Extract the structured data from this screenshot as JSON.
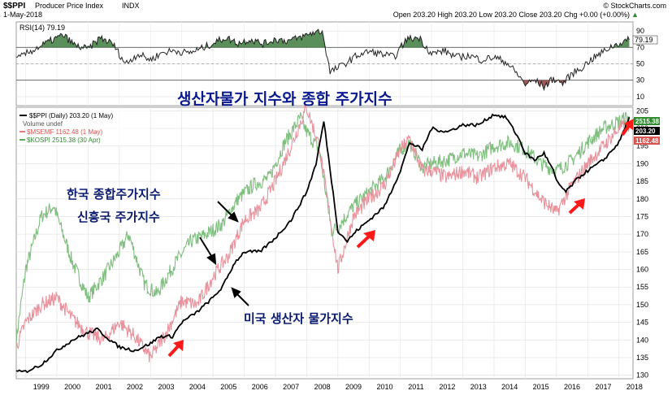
{
  "header": {
    "symbol": "$$PPI",
    "name": "Producer Price Index",
    "exchange": "INDX",
    "date": "1-May-2018",
    "watermark": "© StockCharts.com",
    "ohlc": "Open 203.20  High 203.20  Low 203.20  Close 203.20  Chg +0.00 (+0.00%)",
    "ohlc_arrow": "▲"
  },
  "rsi_panel": {
    "label": "RSI(14) 79.19",
    "value_tag": "79.19",
    "ticks": [
      "90",
      "70",
      "50",
      "30",
      "10"
    ]
  },
  "main_panel": {
    "title_ko": "생산자물가 지수와 종합 주가지수",
    "legend": [
      {
        "text": "$$PPI (Daily) 203.20 (1 May)",
        "color": "#000000"
      },
      {
        "text": "Volume undef",
        "color": "#555555"
      },
      {
        "text": "$MSEMF 1162.48 (1 May)",
        "color": "#d9534f"
      },
      {
        "text": "$KOSPI 2515.38 (30 Apr)",
        "color": "#2e8b2e"
      }
    ],
    "right_tags": [
      {
        "text": "2515.38",
        "color": "#2e8b2e"
      },
      {
        "text": "203.20",
        "color": "#000000"
      },
      {
        "text": "1162.48",
        "color": "#d9534f"
      }
    ],
    "annotations": {
      "kospi": "한국 종합주가지수",
      "msemf": "신흥국 주가지수",
      "ppi": "미국 생산자 물가지수"
    }
  },
  "colors": {
    "ppi": "#000000",
    "kospi": "#7fbf7f",
    "msemf": "#e8929c",
    "rsi_fill": "#3d7a3d",
    "rsi_low_fill": "#8b3a3a",
    "arrow": "#ff1a1a"
  },
  "chart_data": {
    "type": "line",
    "x_axis": {
      "labels": [
        "1999",
        "2000",
        "2001",
        "2002",
        "2003",
        "2004",
        "2005",
        "2006",
        "2007",
        "2008",
        "2009",
        "2010",
        "2011",
        "2012",
        "2013",
        "2014",
        "2015",
        "2016",
        "2017",
        "2018"
      ]
    },
    "y_axis": {
      "ticks": [
        "205",
        "200",
        "195",
        "190",
        "185",
        "180",
        "175",
        "170",
        "165",
        "160",
        "155",
        "150",
        "145",
        "140",
        "135",
        "130"
      ],
      "ylim": [
        129,
        206
      ]
    },
    "series": [
      {
        "name": "$$PPI (Daily) 203.20 (1 May)",
        "x": [
          1998.7,
          1999.0,
          1999.5,
          2000.0,
          2000.5,
          2001.0,
          2001.3,
          2001.7,
          2002.0,
          2002.5,
          2003.0,
          2003.3,
          2003.7,
          2004.0,
          2004.5,
          2005.0,
          2005.3,
          2005.7,
          2006.0,
          2006.5,
          2007.0,
          2007.5,
          2008.0,
          2008.3,
          2008.55,
          2008.8,
          2009.0,
          2009.3,
          2009.6,
          2010.0,
          2010.5,
          2011.0,
          2011.3,
          2011.7,
          2012.0,
          2012.5,
          2013.0,
          2013.5,
          2014.0,
          2014.4,
          2014.8,
          2015.0,
          2015.3,
          2015.6,
          2015.9,
          2016.0,
          2016.3,
          2016.7,
          2017.0,
          2017.5,
          2018.0,
          2018.33
        ],
        "y": [
          131,
          131,
          133,
          137,
          140,
          142,
          143,
          140,
          138,
          137,
          139,
          141,
          141,
          145,
          148,
          152,
          155,
          162,
          165,
          165,
          169,
          174,
          182,
          190,
          202,
          185,
          171,
          168,
          171,
          174,
          178,
          188,
          196,
          194,
          200,
          199,
          201,
          201,
          204,
          203,
          197,
          193,
          191,
          193,
          188,
          185,
          182,
          186,
          188,
          191,
          196,
          203.2
        ]
      },
      {
        "name": "$KOSPI 2515.38 (30 Apr)",
        "x": [
          1998.7,
          1999.0,
          1999.5,
          1999.9,
          2000.5,
          2001.0,
          2001.5,
          2002.0,
          2002.3,
          2002.8,
          2003.2,
          2003.8,
          2004.3,
          2004.8,
          2005.3,
          2005.8,
          2006.3,
          2006.8,
          2007.3,
          2007.8,
          2008.0,
          2008.4,
          2008.8,
          2009.0,
          2009.5,
          2010.0,
          2010.5,
          2011.0,
          2011.3,
          2011.7,
          2012.0,
          2012.5,
          2013.0,
          2013.5,
          2014.0,
          2014.5,
          2015.0,
          2015.5,
          2016.0,
          2016.5,
          2017.0,
          2017.5,
          2018.0,
          2018.33
        ],
        "y": [
          140,
          160,
          175,
          178,
          162,
          152,
          158,
          165,
          170,
          156,
          153,
          162,
          168,
          170,
          173,
          180,
          184,
          186,
          196,
          203,
          199,
          194,
          171,
          172,
          178,
          182,
          186,
          194,
          196,
          189,
          190,
          191,
          193,
          192,
          195,
          196,
          194,
          190,
          188,
          191,
          196,
          200,
          202,
          203.5
        ]
      },
      {
        "name": "$MSEMF 1162.48 (1 May)",
        "x": [
          1998.7,
          1999.0,
          1999.5,
          2000.0,
          2000.5,
          2001.0,
          2001.5,
          2002.0,
          2002.5,
          2003.0,
          2003.5,
          2004.0,
          2004.5,
          2005.0,
          2005.5,
          2006.0,
          2006.5,
          2007.0,
          2007.5,
          2008.0,
          2008.4,
          2008.8,
          2009.0,
          2009.5,
          2010.0,
          2010.5,
          2011.0,
          2011.3,
          2011.7,
          2012.0,
          2012.5,
          2013.0,
          2013.5,
          2014.0,
          2014.5,
          2015.0,
          2015.5,
          2016.0,
          2016.5,
          2017.0,
          2017.5,
          2018.0,
          2018.33
        ],
        "y": [
          138,
          145,
          150,
          152,
          146,
          142,
          140,
          145,
          141,
          135,
          142,
          151,
          150,
          158,
          164,
          174,
          177,
          185,
          195,
          206,
          195,
          172,
          160,
          175,
          180,
          184,
          194,
          197,
          188,
          188,
          186,
          188,
          186,
          189,
          190,
          186,
          180,
          176,
          184,
          190,
          195,
          200,
          201
        ]
      }
    ],
    "rsi": {
      "name": "RSI(14) 79.19",
      "x": [
        1998.7,
        1999.0,
        1999.4,
        1999.8,
        2000.2,
        2000.6,
        2001.0,
        2001.4,
        2001.8,
        2002.2,
        2002.6,
        2003.0,
        2003.4,
        2003.8,
        2004.2,
        2004.6,
        2005.0,
        2005.4,
        2005.8,
        2006.2,
        2006.6,
        2007.0,
        2007.4,
        2007.8,
        2008.2,
        2008.5,
        2008.75,
        2009.0,
        2009.3,
        2009.6,
        2010.0,
        2010.4,
        2010.8,
        2011.2,
        2011.6,
        2012.0,
        2012.4,
        2012.8,
        2013.2,
        2013.6,
        2014.0,
        2014.4,
        2014.8,
        2015.0,
        2015.3,
        2015.6,
        2015.9,
        2016.2,
        2016.5,
        2016.8,
        2017.1,
        2017.4,
        2017.7,
        2018.0,
        2018.33
      ],
      "y": [
        55,
        62,
        70,
        78,
        85,
        72,
        68,
        82,
        74,
        50,
        62,
        55,
        64,
        66,
        63,
        68,
        75,
        82,
        75,
        80,
        74,
        80,
        78,
        82,
        88,
        90,
        40,
        45,
        52,
        60,
        65,
        62,
        58,
        80,
        82,
        62,
        66,
        58,
        60,
        55,
        58,
        52,
        35,
        25,
        30,
        22,
        32,
        26,
        38,
        45,
        55,
        62,
        70,
        75,
        79.19
      ],
      "ticks": [
        90,
        70,
        50,
        30,
        10
      ]
    }
  }
}
